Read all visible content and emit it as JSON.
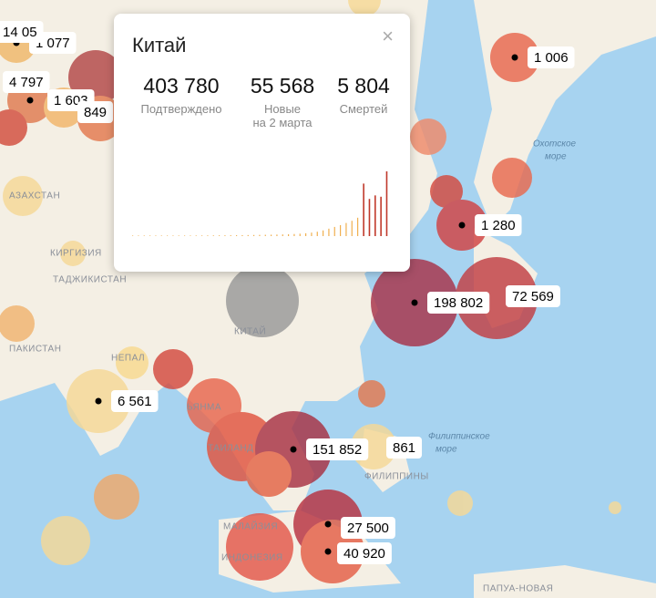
{
  "popup": {
    "title": "Китай",
    "close": "×",
    "stats": [
      {
        "value": "403 780",
        "label": "Подтверждено"
      },
      {
        "value": "55 568",
        "label": "Новые",
        "sublabel": "на 2 марта"
      },
      {
        "value": "5 804",
        "label": "Смертей"
      }
    ],
    "chart": {
      "type": "bar",
      "ylim": [
        0,
        15000
      ],
      "values": [
        30,
        40,
        50,
        60,
        70,
        80,
        90,
        100,
        100,
        110,
        120,
        130,
        140,
        150,
        160,
        170,
        180,
        190,
        200,
        220,
        240,
        260,
        280,
        300,
        320,
        350,
        380,
        420,
        480,
        550,
        650,
        800,
        1000,
        1300,
        1700,
        2100,
        2500,
        3000,
        3500,
        4200,
        12000,
        8500,
        9300,
        9000,
        14800
      ]
    }
  },
  "map": {
    "markers": [
      "1 077",
      "4 797",
      "1 603",
      "14 05",
      "849",
      "1 006",
      "1 280",
      "198 802",
      "72 569",
      "6 561",
      "151 852",
      "861",
      "27 500",
      "40 920"
    ],
    "places": [
      "АЗАХСТАН",
      "КИРГИЗИЯ",
      "ТАДЖИКИСТАН",
      "ПАКИСТАН",
      "НЕПАЛ",
      "КИТАЙ",
      "Охотское",
      "море",
      "Филиппинское",
      "море",
      "ФИЛИППИНЫ",
      "МАЛАЙЗИЯ",
      "ИНДОНЕЗИЯ",
      "ТАИЛАНД",
      "ПАПУА-НОВАЯ",
      "ЬЯНМА"
    ]
  }
}
